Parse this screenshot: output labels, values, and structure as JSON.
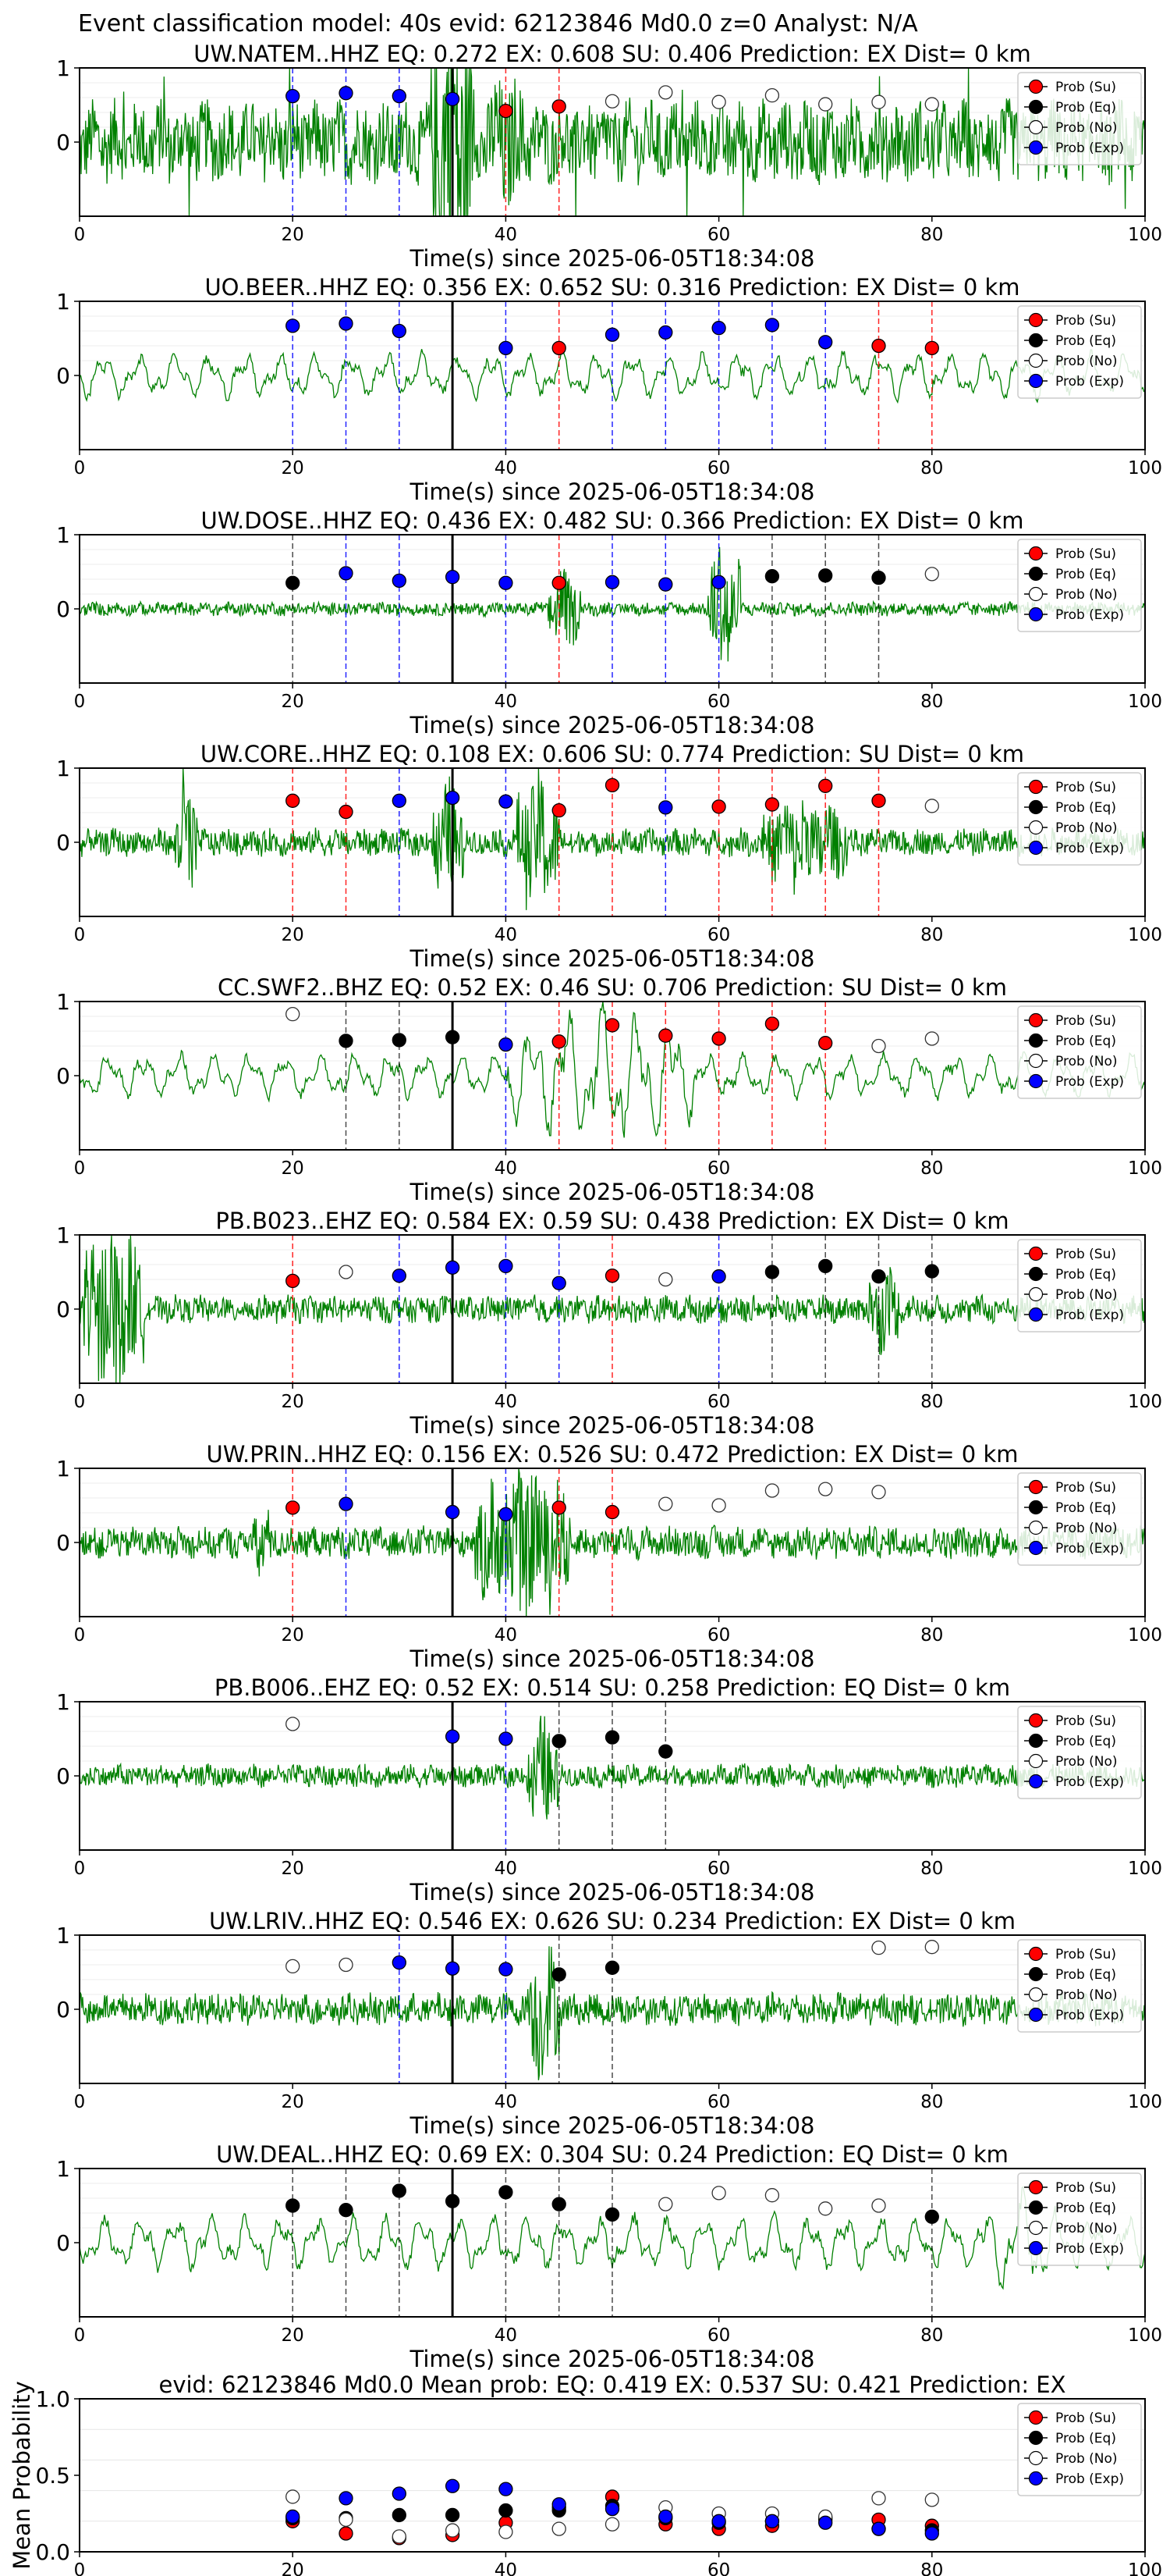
{
  "suptitle": "Event classification model: 40s evid: 62123846 Md0.0 z=0 Analyst: N/A",
  "xlabel": "Time(s) since 2025-06-05T18:34:08",
  "legend": [
    "Prob (Su)",
    "Prob (Eq)",
    "Prob (No)",
    "Prob (Exp)"
  ],
  "colors": {
    "su": "#ff0000",
    "eq": "#000000",
    "no": "#ffffff",
    "exp": "#0000ff",
    "wave": "#008000",
    "su_line": "#ff0000",
    "eq_line": "#000000",
    "exp_line": "#0000ff"
  },
  "chart_data": [
    {
      "type": "line",
      "title": "UW.NATEM..HHZ   EQ: 0.272  EX: 0.608  SU: 0.406   Prediction: EX    Dist= 0 km",
      "xlabel": "Time(s) since 2025-06-05T18:34:08",
      "xlim": [
        0,
        100
      ],
      "ylim": [
        -1,
        1
      ],
      "xticks": [
        "0",
        "20",
        "40",
        "60",
        "80",
        "100"
      ],
      "yticks": [
        "1",
        "0"
      ],
      "noise": [
        0.9,
        3.2
      ],
      "burst": [
        [
          33,
          37,
          3.8
        ],
        [
          38,
          42,
          1.6
        ]
      ],
      "pick_time": 35,
      "markers": [
        {
          "t": 20,
          "p": 0.62,
          "cls": "exp"
        },
        {
          "t": 25,
          "p": 0.66,
          "cls": "exp"
        },
        {
          "t": 30,
          "p": 0.62,
          "cls": "exp"
        },
        {
          "t": 35,
          "p": 0.58,
          "cls": "exp"
        },
        {
          "t": 40,
          "p": 0.42,
          "cls": "su"
        },
        {
          "t": 45,
          "p": 0.48,
          "cls": "su"
        },
        {
          "t": 50,
          "p": 0.55,
          "cls": "no"
        },
        {
          "t": 55,
          "p": 0.67,
          "cls": "no"
        },
        {
          "t": 60,
          "p": 0.54,
          "cls": "no"
        },
        {
          "t": 65,
          "p": 0.63,
          "cls": "no"
        },
        {
          "t": 70,
          "p": 0.51,
          "cls": "no"
        },
        {
          "t": 75,
          "p": 0.54,
          "cls": "no"
        },
        {
          "t": 80,
          "p": 0.51,
          "cls": "no"
        }
      ]
    },
    {
      "type": "line",
      "title": "UO.BEER..HHZ   EQ: 0.356  EX: 0.652  SU: 0.316   Prediction: EX    Dist= 0 km",
      "xlabel": "Time(s) since 2025-06-05T18:34:08",
      "xlim": [
        0,
        100
      ],
      "ylim": [
        -1,
        1
      ],
      "xticks": [
        "0",
        "20",
        "40",
        "60",
        "80",
        "100"
      ],
      "yticks": [
        "1",
        "0"
      ],
      "noise": [
        0.6,
        0.7
      ],
      "burst": [],
      "smooth": true,
      "pick_time": 35,
      "markers": [
        {
          "t": 20,
          "p": 0.67,
          "cls": "exp"
        },
        {
          "t": 25,
          "p": 0.7,
          "cls": "exp"
        },
        {
          "t": 30,
          "p": 0.6,
          "cls": "exp"
        },
        {
          "t": 40,
          "p": 0.37,
          "cls": "exp"
        },
        {
          "t": 45,
          "p": 0.37,
          "cls": "su"
        },
        {
          "t": 50,
          "p": 0.55,
          "cls": "exp"
        },
        {
          "t": 55,
          "p": 0.58,
          "cls": "exp"
        },
        {
          "t": 60,
          "p": 0.64,
          "cls": "exp"
        },
        {
          "t": 65,
          "p": 0.68,
          "cls": "exp"
        },
        {
          "t": 70,
          "p": 0.45,
          "cls": "exp"
        },
        {
          "t": 75,
          "p": 0.4,
          "cls": "su"
        },
        {
          "t": 80,
          "p": 0.37,
          "cls": "su"
        }
      ]
    },
    {
      "type": "line",
      "title": "UW.DOSE..HHZ   EQ: 0.436  EX: 0.482  SU: 0.366   Prediction: EX    Dist= 0 km",
      "xlabel": "Time(s) since 2025-06-05T18:34:08",
      "xlim": [
        0,
        100
      ],
      "ylim": [
        -1,
        1
      ],
      "xticks": [
        "0",
        "20",
        "40",
        "60",
        "80",
        "100"
      ],
      "yticks": [
        "1",
        "0"
      ],
      "noise": [
        0.15,
        0.4
      ],
      "burst": [
        [
          44,
          47,
          0.9
        ],
        [
          59,
          62,
          1.6
        ]
      ],
      "pick_time": 35,
      "markers": [
        {
          "t": 20,
          "p": 0.35,
          "cls": "eq"
        },
        {
          "t": 25,
          "p": 0.48,
          "cls": "exp"
        },
        {
          "t": 30,
          "p": 0.38,
          "cls": "exp"
        },
        {
          "t": 35,
          "p": 0.43,
          "cls": "exp"
        },
        {
          "t": 40,
          "p": 0.35,
          "cls": "exp"
        },
        {
          "t": 45,
          "p": 0.35,
          "cls": "su"
        },
        {
          "t": 50,
          "p": 0.36,
          "cls": "exp"
        },
        {
          "t": 55,
          "p": 0.33,
          "cls": "exp"
        },
        {
          "t": 60,
          "p": 0.36,
          "cls": "exp"
        },
        {
          "t": 65,
          "p": 0.44,
          "cls": "eq"
        },
        {
          "t": 70,
          "p": 0.45,
          "cls": "eq"
        },
        {
          "t": 75,
          "p": 0.42,
          "cls": "eq"
        },
        {
          "t": 80,
          "p": 0.47,
          "cls": "no"
        }
      ]
    },
    {
      "type": "line",
      "title": "UW.CORE..HHZ   EQ: 0.108  EX: 0.606  SU: 0.774   Prediction: SU    Dist= 0 km",
      "xlabel": "Time(s) since 2025-06-05T18:34:08",
      "xlim": [
        0,
        100
      ],
      "ylim": [
        -1,
        1
      ],
      "xticks": [
        "0",
        "20",
        "40",
        "60",
        "80",
        "100"
      ],
      "yticks": [
        "1",
        "0"
      ],
      "noise": [
        0.3,
        1.1
      ],
      "burst": [
        [
          9,
          11,
          1.8
        ],
        [
          33,
          36,
          1.4
        ],
        [
          41,
          45,
          1.6
        ],
        [
          64,
          72,
          1.1
        ]
      ],
      "pick_time": 35,
      "markers": [
        {
          "t": 20,
          "p": 0.56,
          "cls": "su"
        },
        {
          "t": 25,
          "p": 0.41,
          "cls": "su"
        },
        {
          "t": 30,
          "p": 0.56,
          "cls": "exp"
        },
        {
          "t": 35,
          "p": 0.6,
          "cls": "exp"
        },
        {
          "t": 40,
          "p": 0.55,
          "cls": "exp"
        },
        {
          "t": 45,
          "p": 0.43,
          "cls": "su"
        },
        {
          "t": 50,
          "p": 0.77,
          "cls": "su"
        },
        {
          "t": 55,
          "p": 0.47,
          "cls": "exp"
        },
        {
          "t": 60,
          "p": 0.48,
          "cls": "su"
        },
        {
          "t": 65,
          "p": 0.51,
          "cls": "su"
        },
        {
          "t": 70,
          "p": 0.76,
          "cls": "su"
        },
        {
          "t": 75,
          "p": 0.56,
          "cls": "su"
        },
        {
          "t": 80,
          "p": 0.49,
          "cls": "no"
        }
      ]
    },
    {
      "type": "line",
      "title": "CC.SWF2..BHZ   EQ: 0.52  EX: 0.46  SU: 0.706   Prediction: SU    Dist= 0 km",
      "xlabel": "Time(s) since 2025-06-05T18:34:08",
      "xlim": [
        0,
        100
      ],
      "ylim": [
        -1,
        1
      ],
      "xticks": [
        "0",
        "20",
        "40",
        "60",
        "80",
        "100"
      ],
      "yticks": [
        "1",
        "0"
      ],
      "noise": [
        0.6,
        1.0
      ],
      "burst": [
        [
          40,
          58,
          1.9
        ]
      ],
      "smooth": true,
      "pick_time": 35,
      "markers": [
        {
          "t": 20,
          "p": 0.83,
          "cls": "no"
        },
        {
          "t": 25,
          "p": 0.47,
          "cls": "eq"
        },
        {
          "t": 30,
          "p": 0.48,
          "cls": "eq"
        },
        {
          "t": 35,
          "p": 0.52,
          "cls": "eq"
        },
        {
          "t": 40,
          "p": 0.42,
          "cls": "exp"
        },
        {
          "t": 45,
          "p": 0.46,
          "cls": "su"
        },
        {
          "t": 50,
          "p": 0.68,
          "cls": "su"
        },
        {
          "t": 55,
          "p": 0.54,
          "cls": "su"
        },
        {
          "t": 60,
          "p": 0.5,
          "cls": "su"
        },
        {
          "t": 65,
          "p": 0.7,
          "cls": "su"
        },
        {
          "t": 70,
          "p": 0.44,
          "cls": "su"
        },
        {
          "t": 75,
          "p": 0.4,
          "cls": "no"
        },
        {
          "t": 80,
          "p": 0.5,
          "cls": "no"
        }
      ]
    },
    {
      "type": "line",
      "title": "PB.B023..EHZ   EQ: 0.584  EX: 0.59  SU: 0.438   Prediction: EX    Dist= 0 km",
      "xlabel": "Time(s) since 2025-06-05T18:34:08",
      "xlim": [
        0,
        100
      ],
      "ylim": [
        -1,
        1
      ],
      "xticks": [
        "0",
        "20",
        "40",
        "60",
        "80",
        "100"
      ],
      "yticks": [
        "1",
        "0"
      ],
      "noise": [
        0.3,
        0.6
      ],
      "burst": [
        [
          0,
          6,
          2.0
        ],
        [
          74,
          77,
          1.0
        ]
      ],
      "pick_time": 35,
      "markers": [
        {
          "t": 20,
          "p": 0.38,
          "cls": "su"
        },
        {
          "t": 25,
          "p": 0.5,
          "cls": "no"
        },
        {
          "t": 30,
          "p": 0.45,
          "cls": "exp"
        },
        {
          "t": 35,
          "p": 0.56,
          "cls": "exp"
        },
        {
          "t": 40,
          "p": 0.58,
          "cls": "exp"
        },
        {
          "t": 45,
          "p": 0.35,
          "cls": "exp"
        },
        {
          "t": 50,
          "p": 0.45,
          "cls": "su"
        },
        {
          "t": 55,
          "p": 0.4,
          "cls": "no"
        },
        {
          "t": 60,
          "p": 0.44,
          "cls": "exp"
        },
        {
          "t": 65,
          "p": 0.5,
          "cls": "eq"
        },
        {
          "t": 70,
          "p": 0.58,
          "cls": "eq"
        },
        {
          "t": 75,
          "p": 0.44,
          "cls": "eq"
        },
        {
          "t": 80,
          "p": 0.51,
          "cls": "eq"
        }
      ]
    },
    {
      "type": "line",
      "title": "UW.PRIN..HHZ   EQ: 0.156  EX: 0.526  SU: 0.472   Prediction: EX    Dist= 0 km",
      "xlabel": "Time(s) since 2025-06-05T18:34:08",
      "xlim": [
        0,
        100
      ],
      "ylim": [
        -1,
        1
      ],
      "xticks": [
        "0",
        "20",
        "40",
        "60",
        "80",
        "100"
      ],
      "yticks": [
        "1",
        "0"
      ],
      "noise": [
        0.35,
        0.6
      ],
      "burst": [
        [
          16,
          18,
          0.9
        ],
        [
          37,
          46,
          1.8
        ]
      ],
      "pick_time": 35,
      "markers": [
        {
          "t": 20,
          "p": 0.47,
          "cls": "su"
        },
        {
          "t": 25,
          "p": 0.52,
          "cls": "exp"
        },
        {
          "t": 35,
          "p": 0.41,
          "cls": "exp"
        },
        {
          "t": 40,
          "p": 0.38,
          "cls": "exp"
        },
        {
          "t": 45,
          "p": 0.47,
          "cls": "su"
        },
        {
          "t": 50,
          "p": 0.41,
          "cls": "su"
        },
        {
          "t": 55,
          "p": 0.52,
          "cls": "no"
        },
        {
          "t": 60,
          "p": 0.5,
          "cls": "no"
        },
        {
          "t": 65,
          "p": 0.7,
          "cls": "no"
        },
        {
          "t": 70,
          "p": 0.72,
          "cls": "no"
        },
        {
          "t": 75,
          "p": 0.68,
          "cls": "no"
        }
      ]
    },
    {
      "type": "line",
      "title": "PB.B006..EHZ   EQ: 0.52  EX: 0.514  SU: 0.258   Prediction: EQ    Dist= 0 km",
      "xlabel": "Time(s) since 2025-06-05T18:34:08",
      "xlim": [
        0,
        100
      ],
      "ylim": [
        -1,
        1
      ],
      "xticks": [
        "0",
        "20",
        "40",
        "60",
        "80",
        "100"
      ],
      "yticks": [
        "1",
        "0"
      ],
      "noise": [
        0.25,
        0.4
      ],
      "burst": [
        [
          42,
          45,
          1.3
        ]
      ],
      "pick_time": 35,
      "markers": [
        {
          "t": 20,
          "p": 0.7,
          "cls": "no"
        },
        {
          "t": 35,
          "p": 0.53,
          "cls": "exp"
        },
        {
          "t": 40,
          "p": 0.5,
          "cls": "exp"
        },
        {
          "t": 45,
          "p": 0.47,
          "cls": "eq"
        },
        {
          "t": 50,
          "p": 0.52,
          "cls": "eq"
        },
        {
          "t": 55,
          "p": 0.33,
          "cls": "eq"
        }
      ]
    },
    {
      "type": "line",
      "title": "UW.LRIV..HHZ   EQ: 0.546  EX: 0.626  SU: 0.234   Prediction: EX    Dist= 0 km",
      "xlabel": "Time(s) since 2025-06-05T18:34:08",
      "xlim": [
        0,
        100
      ],
      "ylim": [
        -1,
        1
      ],
      "xticks": [
        "0",
        "20",
        "40",
        "60",
        "80",
        "100"
      ],
      "yticks": [
        "1",
        "0"
      ],
      "noise": [
        0.35,
        0.5
      ],
      "burst": [
        [
          42,
          45,
          1.6
        ]
      ],
      "pick_time": 35,
      "markers": [
        {
          "t": 20,
          "p": 0.58,
          "cls": "no"
        },
        {
          "t": 25,
          "p": 0.6,
          "cls": "no"
        },
        {
          "t": 30,
          "p": 0.63,
          "cls": "exp"
        },
        {
          "t": 35,
          "p": 0.55,
          "cls": "exp"
        },
        {
          "t": 40,
          "p": 0.54,
          "cls": "exp"
        },
        {
          "t": 45,
          "p": 0.47,
          "cls": "eq"
        },
        {
          "t": 50,
          "p": 0.56,
          "cls": "eq"
        },
        {
          "t": 75,
          "p": 0.83,
          "cls": "no"
        },
        {
          "t": 80,
          "p": 0.84,
          "cls": "no"
        }
      ]
    },
    {
      "type": "line",
      "title": "UW.DEAL..HHZ   EQ: 0.69  EX: 0.304  SU: 0.24   Prediction: EQ    Dist= 0 km",
      "xlabel": "Time(s) since 2025-06-05T18:34:08",
      "xlim": [
        0,
        100
      ],
      "ylim": [
        -1,
        1
      ],
      "xticks": [
        "0",
        "20",
        "40",
        "60",
        "80",
        "100"
      ],
      "yticks": [
        "1",
        "0"
      ],
      "noise": [
        0.7,
        1.1
      ],
      "burst": [
        [
          84,
          92,
          1.4
        ]
      ],
      "smooth": true,
      "pick_time": 35,
      "markers": [
        {
          "t": 20,
          "p": 0.5,
          "cls": "eq"
        },
        {
          "t": 25,
          "p": 0.44,
          "cls": "eq"
        },
        {
          "t": 30,
          "p": 0.7,
          "cls": "eq"
        },
        {
          "t": 35,
          "p": 0.56,
          "cls": "eq"
        },
        {
          "t": 40,
          "p": 0.68,
          "cls": "eq"
        },
        {
          "t": 45,
          "p": 0.52,
          "cls": "eq"
        },
        {
          "t": 50,
          "p": 0.38,
          "cls": "eq"
        },
        {
          "t": 55,
          "p": 0.52,
          "cls": "no"
        },
        {
          "t": 60,
          "p": 0.67,
          "cls": "no"
        },
        {
          "t": 65,
          "p": 0.64,
          "cls": "no"
        },
        {
          "t": 70,
          "p": 0.46,
          "cls": "no"
        },
        {
          "t": 75,
          "p": 0.5,
          "cls": "no"
        },
        {
          "t": 80,
          "p": 0.35,
          "cls": "eq"
        }
      ]
    },
    {
      "type": "scatter",
      "title": "evid: 62123846  Md0.0   Mean prob:   EQ: 0.419  EX: 0.537  SU: 0.421   Prediction: EX",
      "xlabel": "",
      "ylabel": "Mean Probability",
      "xlim": [
        0,
        100
      ],
      "ylim": [
        0,
        1
      ],
      "xticks": [
        "0",
        "20",
        "40",
        "60",
        "80",
        "100"
      ],
      "yticks": [
        "1.0",
        "0.5",
        "0.0"
      ],
      "x": [
        20,
        25,
        30,
        35,
        40,
        45,
        50,
        55,
        60,
        65,
        70,
        75,
        80
      ],
      "series": [
        {
          "name": "Prob (Su)",
          "cls": "su",
          "values": [
            0.2,
            0.12,
            0.09,
            0.11,
            0.19,
            0.29,
            0.36,
            0.18,
            0.15,
            0.17,
            0.22,
            0.21,
            0.17
          ]
        },
        {
          "name": "Prob (Eq)",
          "cls": "eq",
          "values": [
            0.22,
            0.22,
            0.24,
            0.24,
            0.27,
            0.27,
            0.3,
            0.22,
            0.19,
            0.2,
            0.21,
            0.15,
            0.14
          ]
        },
        {
          "name": "Prob (No)",
          "cls": "no",
          "values": [
            0.36,
            0.21,
            0.1,
            0.14,
            0.13,
            0.15,
            0.18,
            0.29,
            0.25,
            0.25,
            0.23,
            0.35,
            0.34
          ]
        },
        {
          "name": "Prob (Exp)",
          "cls": "exp",
          "values": [
            0.23,
            0.35,
            0.38,
            0.43,
            0.41,
            0.31,
            0.28,
            0.23,
            0.2,
            0.2,
            0.19,
            0.15,
            0.12
          ]
        }
      ]
    }
  ]
}
